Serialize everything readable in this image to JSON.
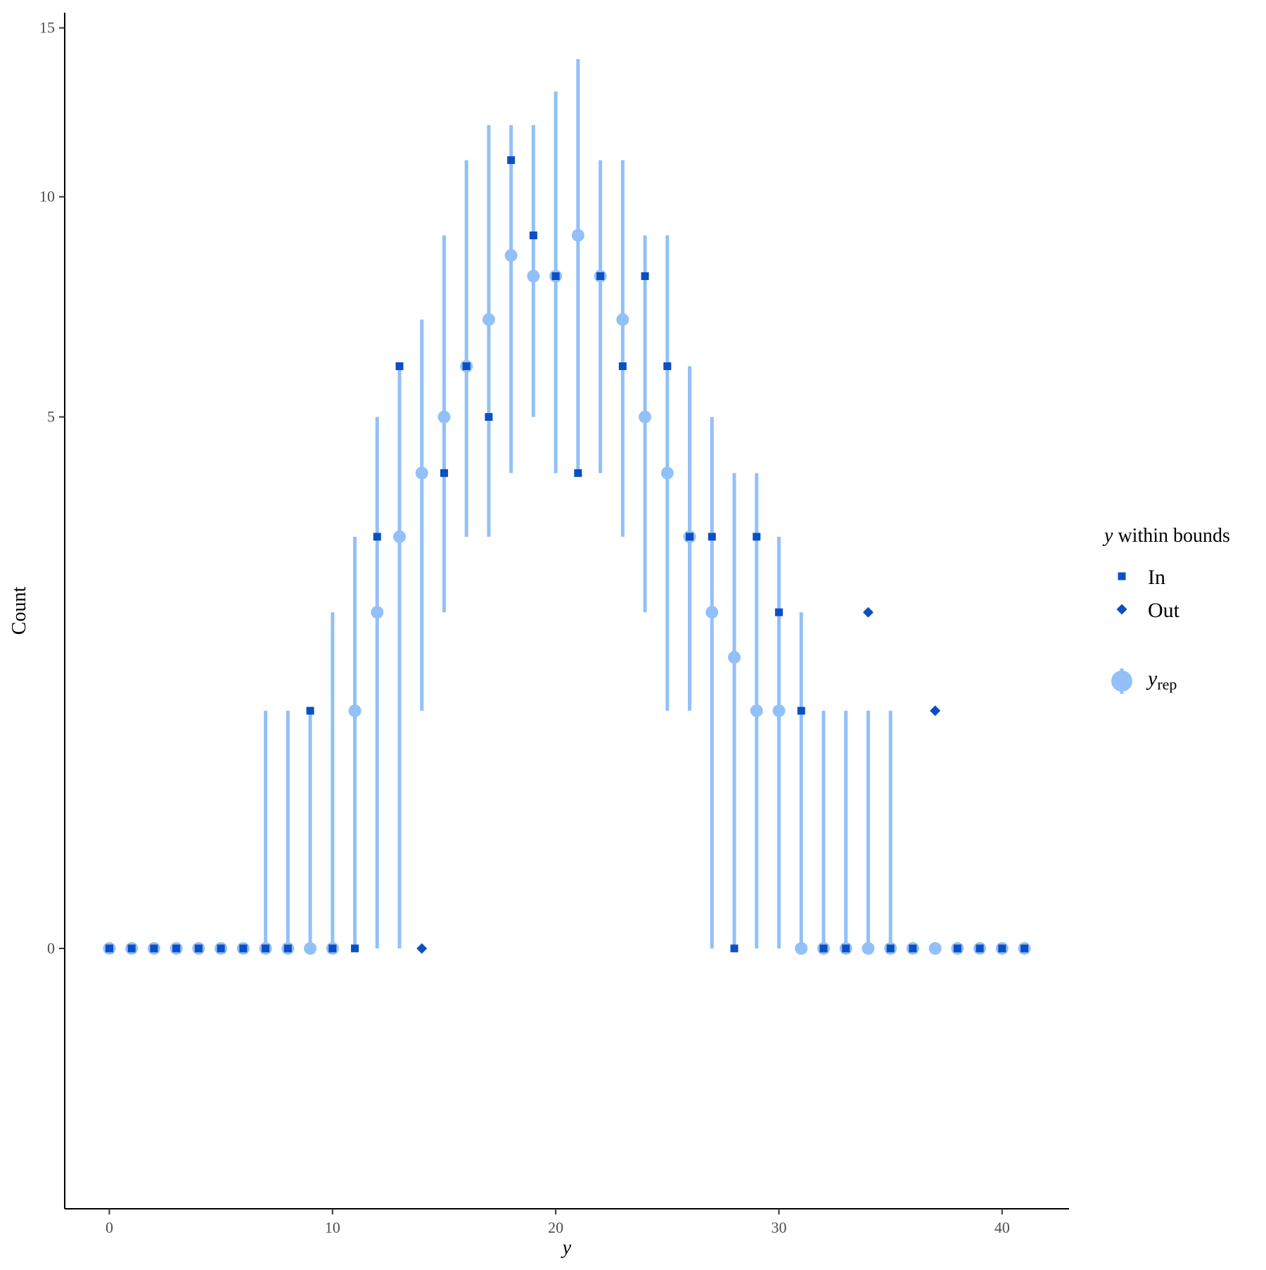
{
  "chart_data": {
    "type": "scatter",
    "xlabel": "y",
    "ylabel": "Count",
    "xlim": [
      -2,
      43
    ],
    "ylim": [
      -1.2,
      15.5
    ],
    "x_ticks": [
      0,
      10,
      20,
      30,
      40
    ],
    "y_ticks": [
      0,
      5,
      10,
      15
    ],
    "y_axis_scale": "sqrt",
    "grid": false,
    "legend_position": "right",
    "legend": {
      "title_italic": "y",
      "title_rest": " within bounds",
      "entries": [
        {
          "label": "In",
          "shape": "square"
        },
        {
          "label": "Out",
          "shape": "diamond"
        }
      ],
      "yrep_main": "y",
      "yrep_sub": "rep"
    },
    "colors": {
      "interval": "#92c0f8",
      "yrep_point": "#92c0f8",
      "observed": "#0b4fc4"
    },
    "x": [
      0,
      1,
      2,
      3,
      4,
      5,
      6,
      7,
      8,
      9,
      10,
      11,
      12,
      13,
      14,
      15,
      16,
      17,
      18,
      19,
      20,
      21,
      22,
      23,
      24,
      25,
      26,
      27,
      28,
      29,
      30,
      31,
      32,
      33,
      34,
      35,
      36,
      37,
      38,
      39,
      40,
      41
    ],
    "series": [
      {
        "name": "yrep",
        "kind": "median_with_interval",
        "median": [
          0,
          0,
          0,
          0,
          0,
          0,
          0,
          0,
          0,
          0,
          0,
          1,
          2,
          3,
          4,
          5,
          6,
          7,
          8.5,
          8,
          8,
          9,
          8,
          7,
          5,
          4,
          3,
          2,
          1.5,
          1,
          1,
          0,
          0,
          0,
          0,
          0,
          0,
          0,
          0,
          0,
          0,
          0
        ],
        "lower": [
          0,
          0,
          0,
          0,
          0,
          0,
          0,
          0,
          0,
          0,
          0,
          0,
          0,
          0,
          1,
          2,
          3,
          3,
          4,
          5,
          4,
          4,
          4,
          3,
          2,
          1,
          1,
          0,
          0,
          0,
          0,
          0,
          0,
          0,
          0,
          0,
          0,
          0,
          0,
          0,
          0,
          0
        ],
        "upper": [
          0,
          0,
          0,
          0,
          0,
          0,
          0,
          1,
          1,
          1,
          2,
          3,
          5,
          6,
          7,
          9,
          11,
          12,
          12,
          12,
          13,
          14,
          11,
          11,
          9,
          9,
          6,
          5,
          4,
          4,
          3,
          2,
          1,
          1,
          1,
          1,
          0,
          0,
          0,
          0,
          0,
          0
        ]
      },
      {
        "name": "y",
        "kind": "observed",
        "values": [
          0,
          0,
          0,
          0,
          0,
          0,
          0,
          0,
          0,
          1,
          0,
          0,
          3,
          6,
          0,
          4,
          6,
          5,
          11,
          9,
          8,
          4,
          8,
          6,
          8,
          6,
          3,
          3,
          0,
          3,
          2,
          1,
          0,
          0,
          2,
          0,
          0,
          1,
          0,
          0,
          0,
          0
        ],
        "within_bounds": [
          "In",
          "In",
          "In",
          "In",
          "In",
          "In",
          "In",
          "In",
          "In",
          "In",
          "In",
          "In",
          "In",
          "In",
          "Out",
          "In",
          "In",
          "In",
          "In",
          "In",
          "In",
          "In",
          "In",
          "In",
          "In",
          "In",
          "In",
          "In",
          "In",
          "In",
          "In",
          "In",
          "In",
          "In",
          "Out",
          "In",
          "In",
          "Out",
          "In",
          "In",
          "In",
          "In"
        ]
      }
    ]
  }
}
